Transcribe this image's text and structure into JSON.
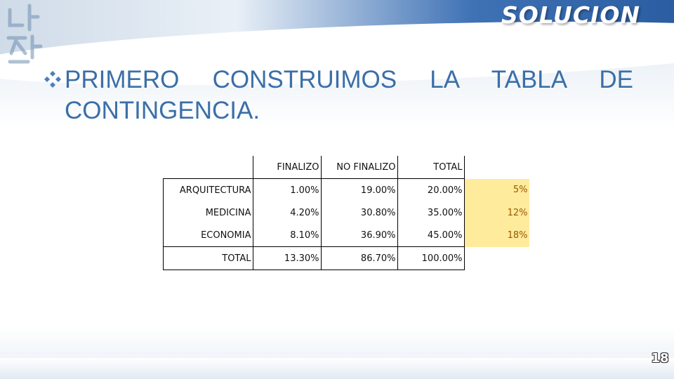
{
  "slide": {
    "title": "SOLUCION",
    "bullet_text": "PRIMERO CONSTRUIMOS LA TABLA DE CONTINGENCIA.",
    "page_number": "18"
  },
  "table": {
    "header": [
      "",
      "FINALIZO",
      "NO FINALIZO",
      "TOTAL",
      ""
    ],
    "rows": [
      [
        "ARQUITECTURA",
        "1.00%",
        "19.00%",
        "20.00%",
        "5%"
      ],
      [
        "MEDICINA",
        "4.20%",
        "30.80%",
        "35.00%",
        "12%"
      ],
      [
        "ECONOMIA",
        "8.10%",
        "36.90%",
        "45.00%",
        "18%"
      ],
      [
        "TOTAL",
        "13.30%",
        "86.70%",
        "100.00%",
        ""
      ]
    ]
  },
  "colors": {
    "title": "#ffffff",
    "bullet_text": "#3b6fa8",
    "highlight_fill": "#ffeb9c",
    "highlight_text": "#9c5700"
  },
  "icons": {
    "bullet": "diamond-cluster-icon",
    "decoration": "korean-calligraphy-decoration"
  }
}
